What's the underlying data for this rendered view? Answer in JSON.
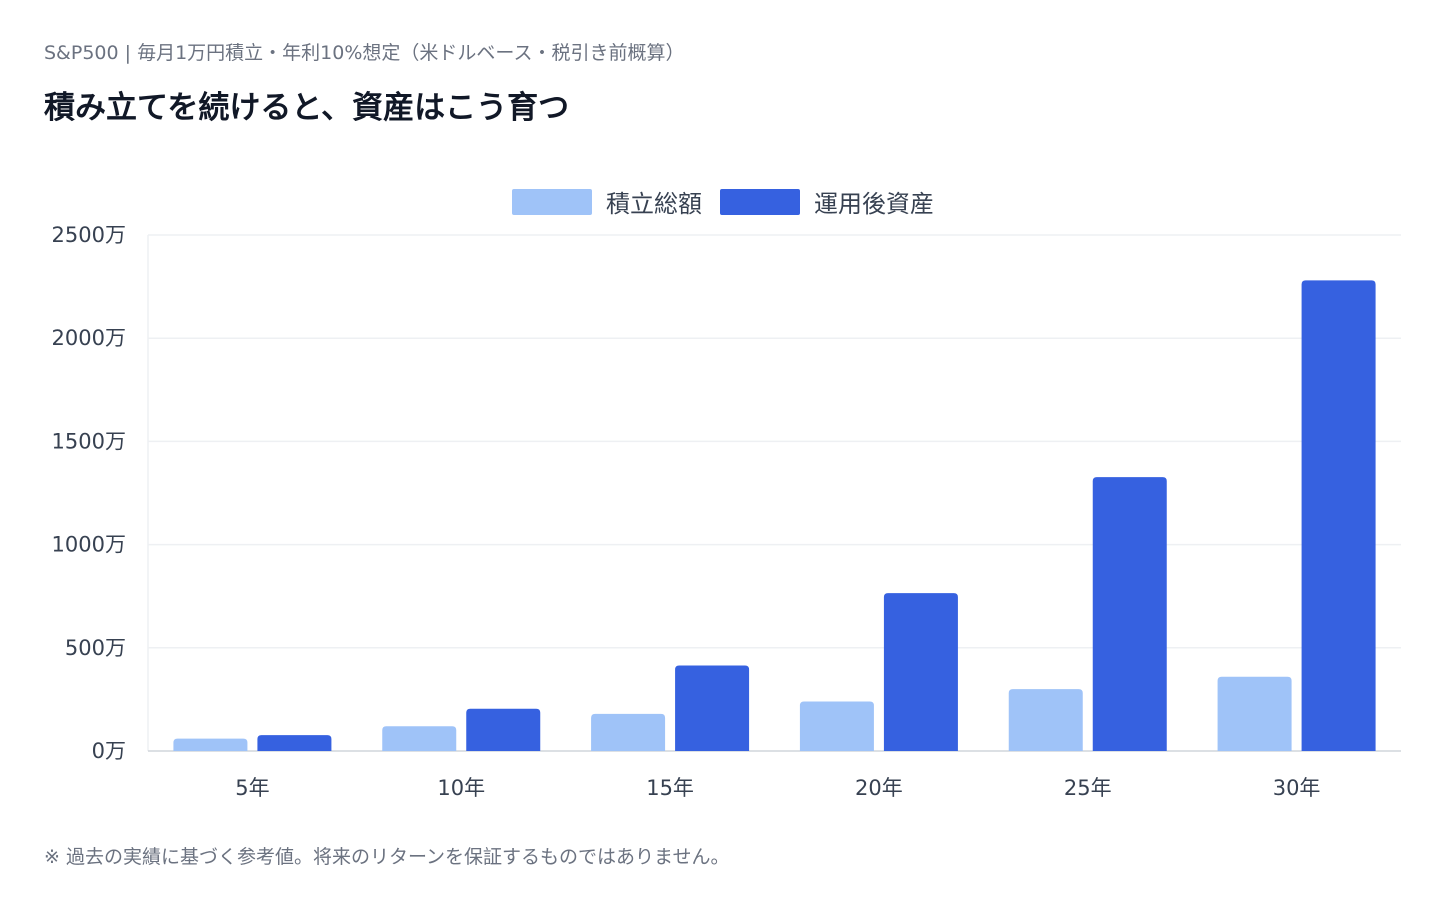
{
  "header": {
    "subtitle": "S&P500 | 毎月1万円積立・年利10%想定（米ドルベース・税引き前概算）",
    "title": "積み立てを続けると、資産はこう育つ"
  },
  "footnote": "※ 過去の実績に基づく参考値。将来のリターンを保証するものではありません。",
  "colors": {
    "contributed": "#9fc3f8",
    "grown": "#3661e0",
    "grid": "#eef0f3",
    "axis": "#d1d5db"
  },
  "chart_data": {
    "type": "bar",
    "title": "積み立てを続けると、資産はこう育つ",
    "categories": [
      "5年",
      "10年",
      "15年",
      "20年",
      "25年",
      "30年"
    ],
    "series": [
      {
        "name": "積立総額",
        "values": [
          60,
          120,
          180,
          240,
          300,
          360
        ]
      },
      {
        "name": "運用後資産",
        "values": [
          77,
          205,
          414,
          765,
          1327,
          2280
        ]
      }
    ],
    "yticks": [
      "0万",
      "500万",
      "1000万",
      "1500万",
      "2000万",
      "2500万"
    ],
    "ylim": [
      0,
      2500
    ],
    "unit": "万",
    "grid": true,
    "legend_position": "top-center",
    "xlabel": "",
    "ylabel": ""
  }
}
